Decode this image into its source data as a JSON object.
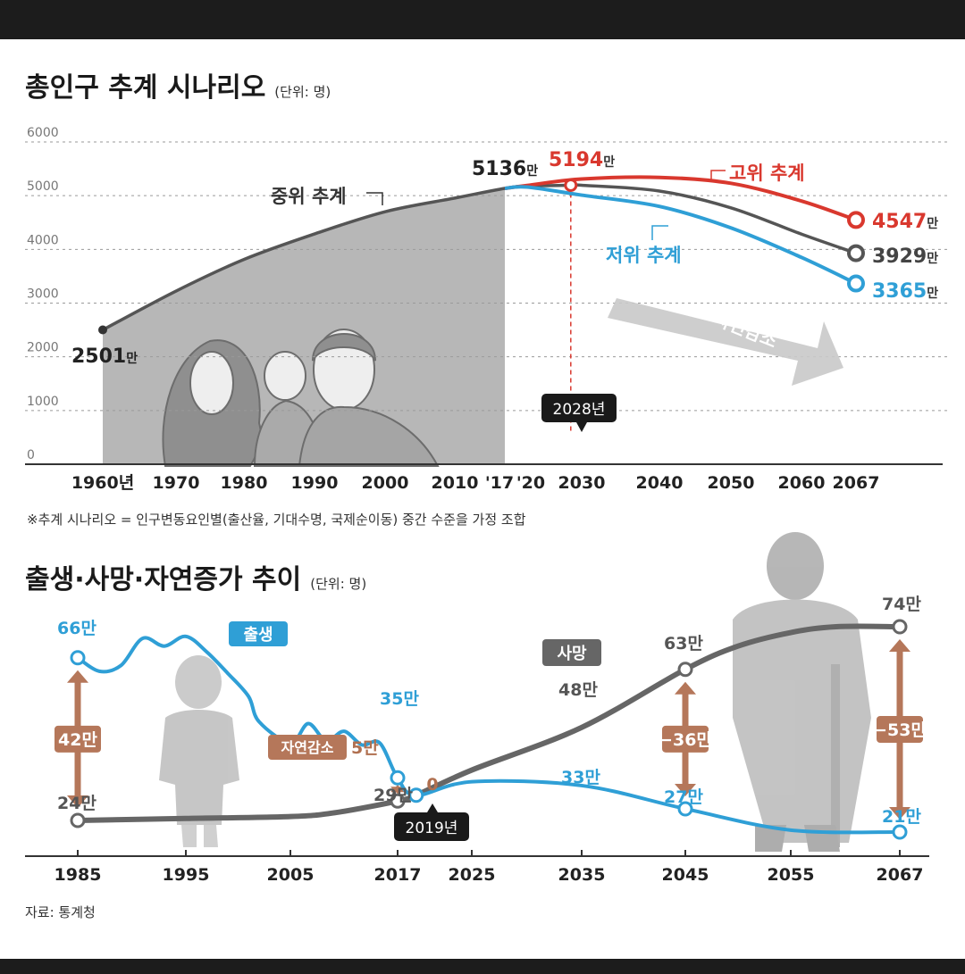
{
  "chart_data": [
    {
      "type": "line",
      "title": "총인구 추계 시나리오",
      "unit": "(단위: 명)",
      "ylim": [
        0,
        6000
      ],
      "yticks": [
        0,
        1000,
        2000,
        3000,
        4000,
        5000,
        6000
      ],
      "x_tick_labels": [
        "1960년",
        "1970",
        "1980",
        "1990",
        "2000",
        "2010",
        "'17",
        "'20",
        "2030",
        "2040",
        "2050",
        "2060",
        "2067"
      ],
      "x_tick_years": [
        1960,
        1970,
        1980,
        1990,
        2000,
        2010,
        2017,
        2020,
        2030,
        2040,
        2050,
        2060,
        2067
      ],
      "series": [
        {
          "name": "중위 추계",
          "color": "#555555",
          "x": [
            1960,
            1970,
            1980,
            1990,
            2000,
            2010,
            2017,
            2020,
            2028,
            2030,
            2040,
            2050,
            2060,
            2067
          ],
          "values": [
            2501,
            3224,
            3812,
            4287,
            4701,
            4955,
            5136,
            5178,
            5194,
            5193,
            5086,
            4774,
            4284,
            3929
          ]
        },
        {
          "name": "고위 추계",
          "color": "#d9382e",
          "x": [
            2017,
            2020,
            2030,
            2040,
            2050,
            2060,
            2067
          ],
          "values": [
            5136,
            5190,
            5310,
            5340,
            5230,
            4900,
            4547
          ]
        },
        {
          "name": "저위 추계",
          "color": "#2f9fd6",
          "x": [
            2017,
            2020,
            2030,
            2040,
            2050,
            2060,
            2067
          ],
          "values": [
            5136,
            5160,
            5010,
            4800,
            4400,
            3850,
            3365
          ]
        }
      ],
      "labels": {
        "start": "2501만",
        "peak_2017": "5136만",
        "peak_2028": "5194만",
        "high_2067": "4547만",
        "mid_2067": "3929만",
        "low_2067": "3365만"
      },
      "annotations": {
        "year_callout": "2028년",
        "natural_decrease": "자연감소"
      },
      "footnote": "※추계 시나리오 = 인구변동요인별(출산율, 기대수명, 국제순이동) 중간 수준을 가정 조합"
    },
    {
      "type": "line",
      "title": "출생·사망·자연증가 추이",
      "unit": "(단위: 명)",
      "x_tick_labels": [
        "1985",
        "1995",
        "2005",
        "2017",
        "2025",
        "2035",
        "2045",
        "2055",
        "2067"
      ],
      "x_tick_years": [
        1985,
        1995,
        2005,
        2017,
        2025,
        2035,
        2045,
        2055,
        2067
      ],
      "series": [
        {
          "name": "출생",
          "color": "#2f9fd6",
          "x": [
            1985,
            1987,
            1989,
            1991,
            1993,
            1995,
            1997,
            1999,
            2001,
            2002,
            2005,
            2007,
            2009,
            2011,
            2013,
            2015,
            2017,
            2019,
            2025,
            2035,
            2045,
            2055,
            2067
          ],
          "values": [
            66,
            62.5,
            64,
            71,
            69,
            71.5,
            67.5,
            62,
            56,
            49.5,
            44,
            49,
            44.5,
            47,
            43.5,
            44,
            35,
            30.5,
            34,
            33,
            27,
            21.5,
            21
          ]
        },
        {
          "name": "사망",
          "color": "#666666",
          "x": [
            1985,
            1995,
            2005,
            2010,
            2017,
            2019,
            2025,
            2035,
            2045,
            2050,
            2055,
            2060,
            2067
          ],
          "values": [
            24,
            24.5,
            25,
            26,
            29,
            30.5,
            37,
            48,
            63,
            69,
            72.5,
            74,
            74
          ]
        }
      ],
      "labels": {
        "birth_1985": "66만",
        "death_1985": "24만",
        "gap_1985": "42만",
        "birth_2017": "35만",
        "death_2017": "29만",
        "gap_2017": "5만",
        "natural_decrease": "자연감소",
        "zero_2019": "0",
        "death_2035": "48만",
        "birth_2035": "33만",
        "death_2045": "63만",
        "birth_2045": "27만",
        "gap_2045": "−36만",
        "death_2067": "74만",
        "birth_2067": "21만",
        "gap_2067": "−53만",
        "legend_birth": "출생",
        "legend_death": "사망"
      },
      "annotations": {
        "year_callout": "2019년"
      },
      "source": "자료: 통계청"
    }
  ]
}
